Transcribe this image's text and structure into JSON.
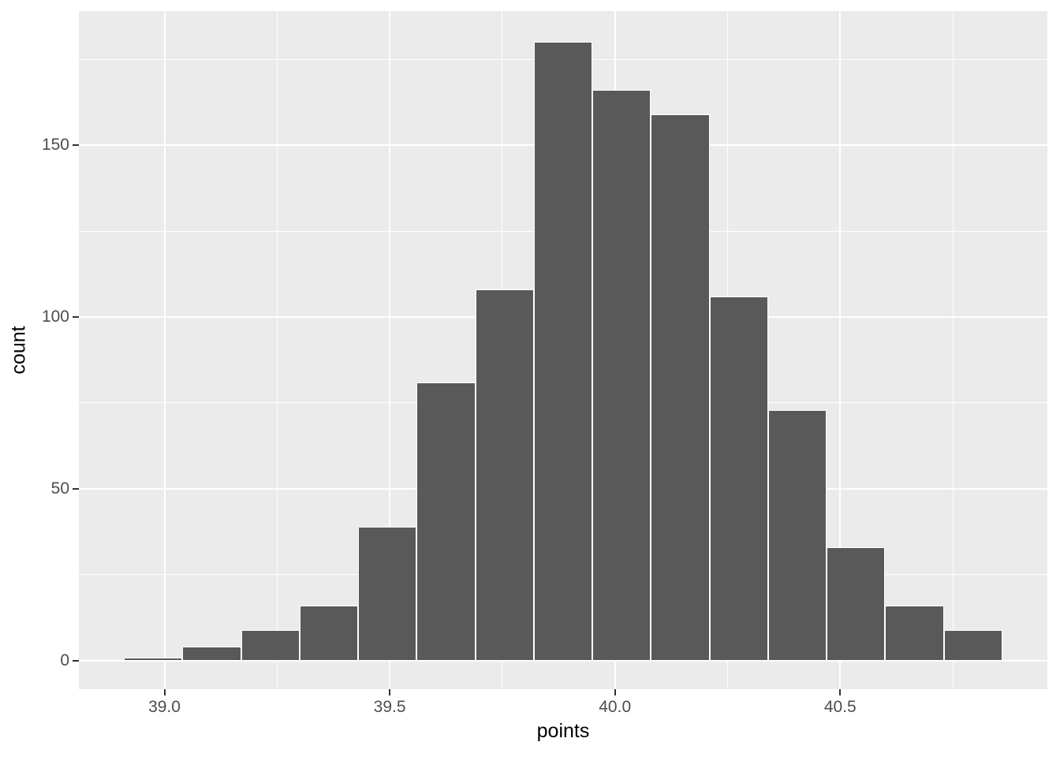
{
  "figure": {
    "xlabel": "points",
    "ylabel": "count"
  },
  "chart_data": {
    "type": "bar",
    "subtype": "histogram",
    "title": "",
    "xlabel": "points",
    "ylabel": "count",
    "legend": "none",
    "grid": "on",
    "xlim": [
      38.81,
      40.96
    ],
    "ylim": [
      -8.3,
      189
    ],
    "bin_edges": [
      38.91,
      39.04,
      39.17,
      39.3,
      39.43,
      39.56,
      39.69,
      39.82,
      39.95,
      40.08,
      40.21,
      40.34,
      40.47,
      40.6,
      40.73,
      40.86
    ],
    "counts": [
      1,
      4,
      9,
      16,
      39,
      81,
      108,
      180,
      166,
      159,
      106,
      73,
      33,
      16,
      9
    ],
    "x_ticks": [
      {
        "value": 39.0,
        "label": "39.0"
      },
      {
        "value": 39.5,
        "label": "39.5"
      },
      {
        "value": 40.0,
        "label": "40.0"
      },
      {
        "value": 40.5,
        "label": "40.5"
      }
    ],
    "x_minor_ticks": [
      39.25,
      39.75,
      40.25,
      40.75
    ],
    "y_ticks": [
      {
        "value": 0,
        "label": "0"
      },
      {
        "value": 50,
        "label": "50"
      },
      {
        "value": 100,
        "label": "100"
      },
      {
        "value": 150,
        "label": "150"
      }
    ],
    "y_minor_ticks": [
      25,
      75,
      125,
      175
    ],
    "colors": {
      "page_bg": "#FFFFFF",
      "panel_bg": "#EBEBEB",
      "grid": "#FFFFFF",
      "bar_fill": "#595959",
      "bar_border": "#FFFFFF",
      "tick_mark": "#333333",
      "tick_label": "#4D4D4D",
      "axis_title": "#000000"
    }
  }
}
